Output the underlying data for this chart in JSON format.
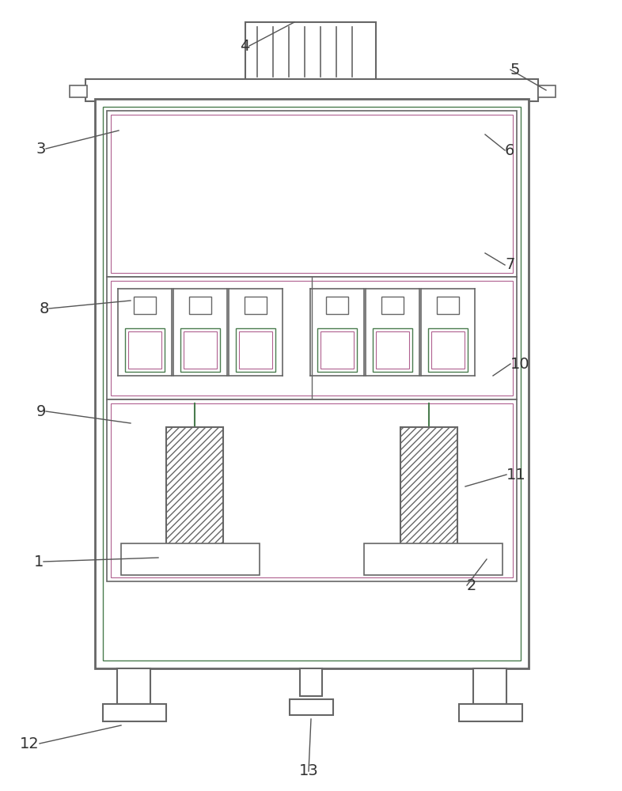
{
  "bg_color": "#ffffff",
  "line_color": "#666666",
  "green_color": "#4a7c4e",
  "pink_color": "#b06090",
  "label_color": "#333333",
  "ann_color": "#555555",
  "label_fontsize": 14,
  "ann_lw": 1.0
}
